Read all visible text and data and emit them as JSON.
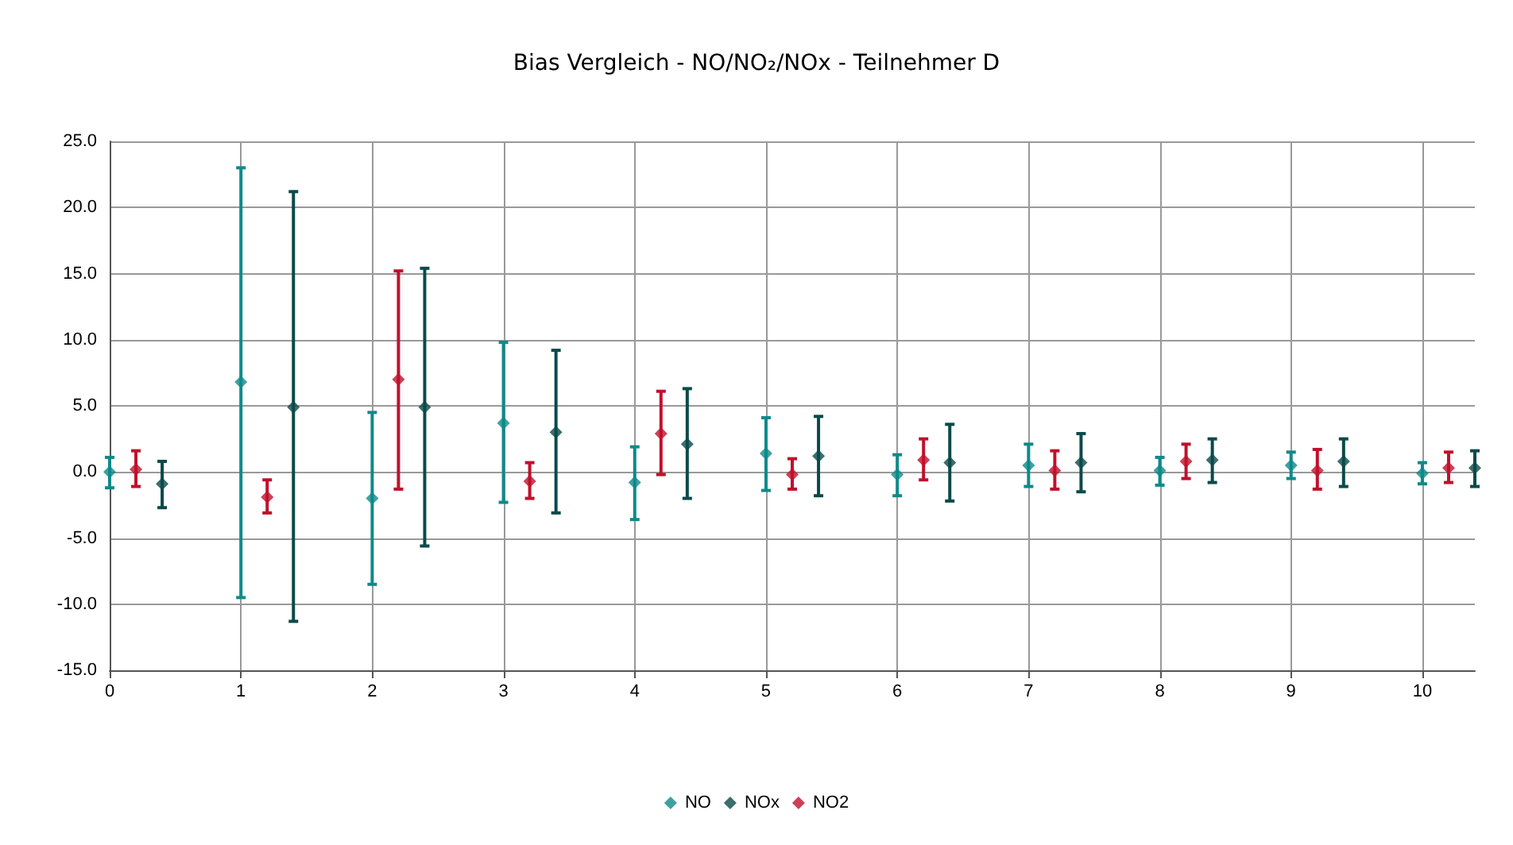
{
  "chart_data": {
    "type": "scatter",
    "title": "Bias Vergleich - NO/NO₂/NOx - Teilnehmer D",
    "marker": "diamond",
    "grid": true,
    "legend": "bottom",
    "xlim": [
      0,
      10.4
    ],
    "xticks": [
      0,
      1,
      2,
      3,
      4,
      5,
      6,
      7,
      8,
      9,
      10
    ],
    "ylim": [
      -15,
      25
    ],
    "yticks": [
      {
        "value": -15,
        "label": "-15.0"
      },
      {
        "value": -10,
        "label": "-10.0"
      },
      {
        "value": -5,
        "label": "-5.0"
      },
      {
        "value": 0,
        "label": "0.0"
      },
      {
        "value": 5,
        "label": "5.0"
      },
      {
        "value": 10,
        "label": "10.0"
      },
      {
        "value": 15,
        "label": "15.0"
      },
      {
        "value": 20,
        "label": "20.0"
      },
      {
        "value": 25,
        "label": "25.0"
      }
    ],
    "series": [
      {
        "name": "NO",
        "color": "#0e8a8a",
        "x": [
          0,
          1,
          2,
          3,
          4,
          5,
          6,
          7,
          8,
          9,
          10
        ],
        "values": [
          0.0,
          6.8,
          -2.0,
          3.7,
          -0.8,
          1.4,
          -0.2,
          0.5,
          0.1,
          0.5,
          -0.1
        ],
        "errors": [
          [
            -1.2,
            1.1
          ],
          [
            -9.5,
            23.0
          ],
          [
            -8.5,
            4.5
          ],
          [
            -2.3,
            9.8
          ],
          [
            -3.6,
            1.9
          ],
          [
            -1.4,
            4.1
          ],
          [
            -1.8,
            1.3
          ],
          [
            -1.1,
            2.1
          ],
          [
            -1.0,
            1.1
          ],
          [
            -0.5,
            1.5
          ],
          [
            -0.9,
            0.7
          ]
        ]
      },
      {
        "name": "NOx",
        "color": "#0b4a4a",
        "x": [
          0.4,
          1.4,
          2.4,
          3.4,
          4.4,
          5.4,
          6.4,
          7.4,
          8.4,
          9.4,
          10.4
        ],
        "values": [
          -0.9,
          4.9,
          4.9,
          3.0,
          2.1,
          1.2,
          0.7,
          0.7,
          0.9,
          0.8,
          0.3
        ],
        "errors": [
          [
            -2.7,
            0.8
          ],
          [
            -11.3,
            21.2
          ],
          [
            -5.6,
            15.4
          ],
          [
            -3.1,
            9.2
          ],
          [
            -2.0,
            6.3
          ],
          [
            -1.8,
            4.2
          ],
          [
            -2.2,
            3.6
          ],
          [
            -1.5,
            2.9
          ],
          [
            -0.8,
            2.5
          ],
          [
            -1.1,
            2.5
          ],
          [
            -1.1,
            1.6
          ]
        ]
      },
      {
        "name": "NO2",
        "color": "#c0102c",
        "x": [
          0.2,
          1.2,
          2.2,
          3.2,
          4.2,
          5.2,
          6.2,
          7.2,
          8.2,
          9.2,
          10.2
        ],
        "values": [
          0.2,
          -1.9,
          7.0,
          -0.7,
          2.9,
          -0.2,
          0.9,
          0.1,
          0.8,
          0.1,
          0.3
        ],
        "errors": [
          [
            -1.1,
            1.6
          ],
          [
            -3.1,
            -0.6
          ],
          [
            -1.3,
            15.2
          ],
          [
            -2.0,
            0.7
          ],
          [
            -0.2,
            6.1
          ],
          [
            -1.3,
            1.0
          ],
          [
            -0.6,
            2.5
          ],
          [
            -1.3,
            1.6
          ],
          [
            -0.5,
            2.1
          ],
          [
            -1.3,
            1.7
          ],
          [
            -0.8,
            1.5
          ]
        ]
      }
    ]
  }
}
